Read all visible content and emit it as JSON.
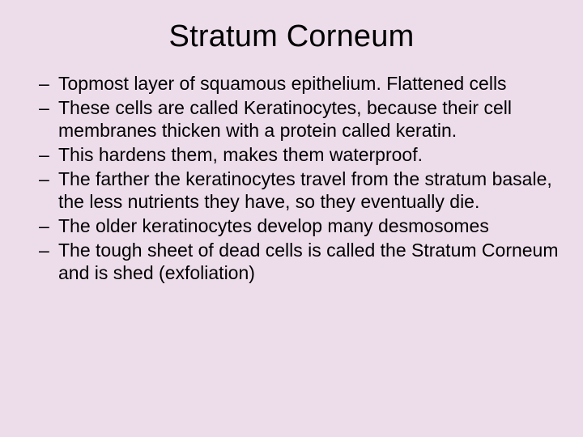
{
  "slide": {
    "title": "Stratum Corneum",
    "title_fontsize": 38,
    "title_color": "#000000",
    "background_color": "#edddeb",
    "body_fontsize": 23,
    "body_color": "#000000",
    "bullet_char": "–",
    "bullets": [
      "Topmost layer of squamous epithelium. Flattened cells",
      "These cells are called Keratinocytes, because their cell membranes thicken with a protein called keratin.",
      "This hardens them, makes them waterproof.",
      "The farther the keratinocytes travel from the stratum basale, the less nutrients they have, so they eventually die.",
      "The older keratinocytes develop many desmosomes",
      "The tough sheet of dead cells is called the Stratum Corneum and is shed (exfoliation)"
    ]
  }
}
